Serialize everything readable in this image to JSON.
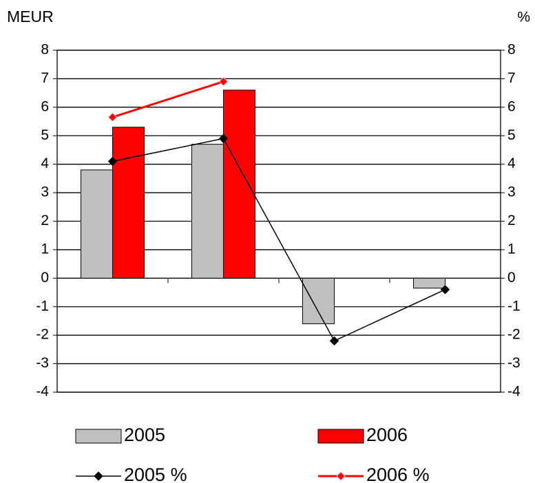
{
  "chart_data": {
    "type": "bar",
    "y_label": "MEUR",
    "y2_label": "%",
    "categories": [
      null,
      null,
      null,
      null
    ],
    "series": [
      {
        "name": "2005",
        "type": "bar",
        "color": "#c0c0c0",
        "values": [
          3.8,
          4.7,
          -1.6,
          -0.35
        ]
      },
      {
        "name": "2006",
        "type": "bar",
        "color": "#ff0000",
        "values": [
          5.3,
          6.6,
          null,
          null
        ]
      },
      {
        "name": "2005 %",
        "type": "line",
        "axis": "y2",
        "color": "#000000",
        "values": [
          4.1,
          4.9,
          -2.2,
          -0.4
        ]
      },
      {
        "name": "2006 %",
        "type": "line",
        "axis": "y2",
        "color": "#ff0000",
        "values": [
          5.65,
          6.9,
          null,
          null
        ]
      }
    ],
    "ylim": [
      -4,
      8
    ],
    "yticks": [
      -4,
      -3,
      -2,
      -1,
      0,
      1,
      2,
      3,
      4,
      5,
      6,
      7,
      8
    ],
    "y2lim": [
      -4,
      8
    ],
    "y2ticks": [
      -4,
      -3,
      -2,
      -1,
      0,
      1,
      2,
      3,
      4,
      5,
      6,
      7,
      8
    ],
    "grid": true
  }
}
